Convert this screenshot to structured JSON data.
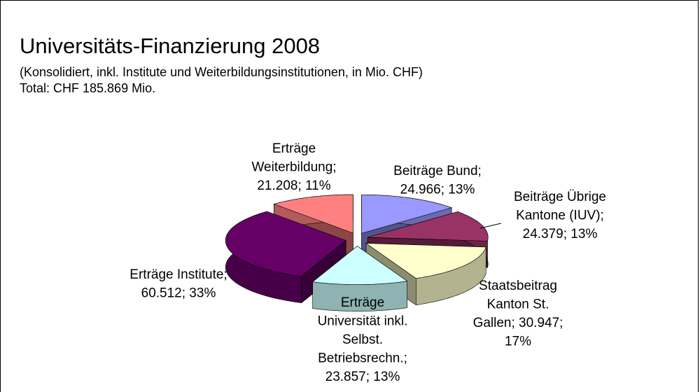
{
  "chart_data": {
    "type": "pie3d",
    "title": "Universitäts-Finanzierung 2008",
    "subtitle": "(Konsolidiert, inkl. Institute und Weiterbildungsinstitutionen, in Mio. CHF)",
    "total_label": "Total: CHF 185.869 Mio.",
    "values": [
      24.966,
      24.379,
      30.947,
      23.857,
      60.512,
      21.208
    ],
    "colors": [
      "#9999ff",
      "#993366",
      "#ffffcc",
      "#ccffff",
      "#660066",
      "#ff8080"
    ],
    "value_labels": [
      [
        "Beiträge Bund;",
        "24.966; 13%"
      ],
      [
        "Beiträge Übrige",
        "Kantone (IUV);",
        "24.379; 13%"
      ],
      [
        "Staatsbeitrag",
        "Kanton St.",
        "Gallen; 30.947;",
        "17%"
      ],
      [
        "Erträge",
        "Universität inkl.",
        "Selbst.",
        "Betriebsrechn.;",
        "23.857; 13%"
      ],
      [
        "Erträge Institute;",
        "60.512; 33%"
      ],
      [
        "Erträge",
        "Weiterbildung;",
        "21.208; 11%"
      ]
    ]
  }
}
